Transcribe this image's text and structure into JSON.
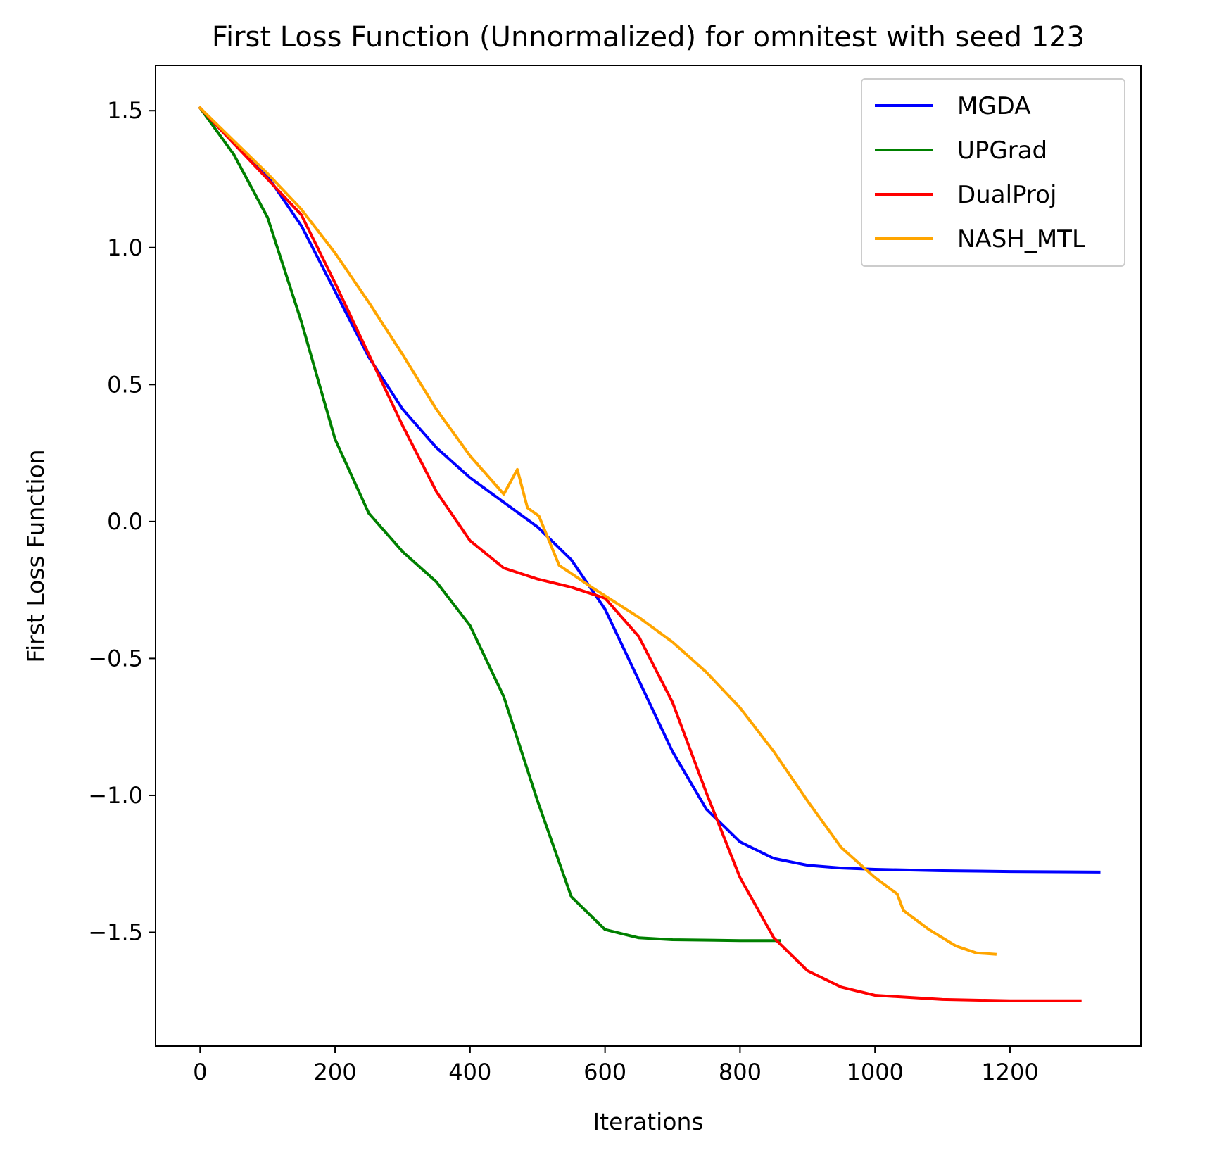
{
  "chart_data": {
    "type": "line",
    "title": "First Loss Function (Unnormalized) for omnitest with seed 123",
    "xlabel": "Iterations",
    "ylabel": "First Loss Function",
    "xlim": [
      -66,
      1394
    ],
    "ylim": [
      -1.915,
      1.665
    ],
    "xticks": [
      0,
      200,
      400,
      600,
      800,
      1000,
      1200
    ],
    "xtick_labels": [
      "0",
      "200",
      "400",
      "600",
      "800",
      "1000",
      "1200"
    ],
    "yticks": [
      1.5,
      1.0,
      0.5,
      0.0,
      -0.5,
      -1.0,
      -1.5
    ],
    "ytick_labels": [
      "1.5",
      "1.0",
      "0.5",
      "0.0",
      "−0.5",
      "−1.0",
      "−1.5"
    ],
    "grid": false,
    "legend_position": "top-right",
    "series": [
      {
        "name": "MGDA",
        "color": "#0000ff",
        "points": [
          [
            0,
            1.51
          ],
          [
            50,
            1.38
          ],
          [
            100,
            1.26
          ],
          [
            150,
            1.08
          ],
          [
            200,
            0.84
          ],
          [
            250,
            0.6
          ],
          [
            300,
            0.41
          ],
          [
            350,
            0.27
          ],
          [
            400,
            0.16
          ],
          [
            450,
            0.07
          ],
          [
            500,
            -0.02
          ],
          [
            550,
            -0.14
          ],
          [
            600,
            -0.32
          ],
          [
            650,
            -0.58
          ],
          [
            700,
            -0.84
          ],
          [
            750,
            -1.05
          ],
          [
            800,
            -1.17
          ],
          [
            850,
            -1.23
          ],
          [
            900,
            -1.255
          ],
          [
            950,
            -1.265
          ],
          [
            1000,
            -1.27
          ],
          [
            1100,
            -1.275
          ],
          [
            1200,
            -1.278
          ],
          [
            1332,
            -1.28
          ]
        ]
      },
      {
        "name": "UPGrad",
        "color": "#008000",
        "points": [
          [
            0,
            1.51
          ],
          [
            50,
            1.34
          ],
          [
            100,
            1.11
          ],
          [
            150,
            0.73
          ],
          [
            200,
            0.3
          ],
          [
            250,
            0.03
          ],
          [
            300,
            -0.11
          ],
          [
            350,
            -0.22
          ],
          [
            400,
            -0.38
          ],
          [
            450,
            -0.64
          ],
          [
            500,
            -1.02
          ],
          [
            550,
            -1.37
          ],
          [
            600,
            -1.49
          ],
          [
            650,
            -1.52
          ],
          [
            700,
            -1.527
          ],
          [
            800,
            -1.53
          ],
          [
            858,
            -1.53
          ]
        ]
      },
      {
        "name": "DualProj",
        "color": "#ff0000",
        "points": [
          [
            0,
            1.51
          ],
          [
            50,
            1.38
          ],
          [
            100,
            1.25
          ],
          [
            150,
            1.12
          ],
          [
            200,
            0.87
          ],
          [
            250,
            0.61
          ],
          [
            300,
            0.35
          ],
          [
            350,
            0.11
          ],
          [
            400,
            -0.07
          ],
          [
            450,
            -0.17
          ],
          [
            500,
            -0.21
          ],
          [
            550,
            -0.24
          ],
          [
            600,
            -0.28
          ],
          [
            650,
            -0.42
          ],
          [
            700,
            -0.66
          ],
          [
            750,
            -0.99
          ],
          [
            800,
            -1.3
          ],
          [
            850,
            -1.52
          ],
          [
            900,
            -1.64
          ],
          [
            950,
            -1.7
          ],
          [
            1000,
            -1.73
          ],
          [
            1100,
            -1.745
          ],
          [
            1200,
            -1.75
          ],
          [
            1304,
            -1.75
          ]
        ]
      },
      {
        "name": "NASH_MTL",
        "color": "#ffa500",
        "points": [
          [
            0,
            1.51
          ],
          [
            50,
            1.39
          ],
          [
            100,
            1.27
          ],
          [
            150,
            1.14
          ],
          [
            200,
            0.98
          ],
          [
            250,
            0.8
          ],
          [
            300,
            0.61
          ],
          [
            350,
            0.41
          ],
          [
            400,
            0.24
          ],
          [
            450,
            0.1
          ],
          [
            470,
            0.19
          ],
          [
            485,
            0.05
          ],
          [
            502,
            0.02
          ],
          [
            532,
            -0.16
          ],
          [
            580,
            -0.24
          ],
          [
            650,
            -0.35
          ],
          [
            700,
            -0.44
          ],
          [
            750,
            -0.55
          ],
          [
            800,
            -0.68
          ],
          [
            850,
            -0.84
          ],
          [
            900,
            -1.02
          ],
          [
            950,
            -1.19
          ],
          [
            1000,
            -1.3
          ],
          [
            1033,
            -1.36
          ],
          [
            1042,
            -1.42
          ],
          [
            1080,
            -1.49
          ],
          [
            1120,
            -1.55
          ],
          [
            1150,
            -1.575
          ],
          [
            1178,
            -1.58
          ]
        ]
      }
    ]
  }
}
